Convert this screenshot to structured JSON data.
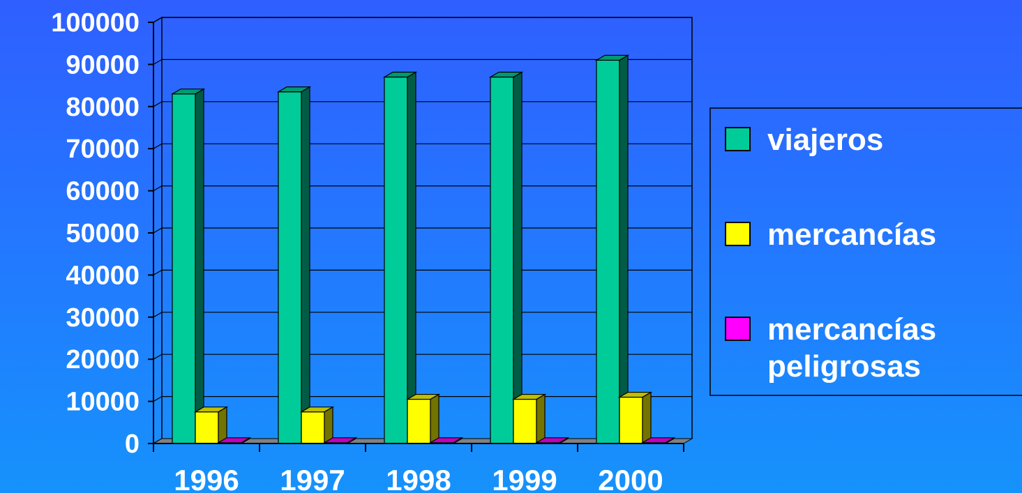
{
  "chart_data": {
    "type": "bar",
    "title": "",
    "xlabel": "",
    "ylabel": "",
    "categories": [
      "1996",
      "1997",
      "1998",
      "1999",
      "2000"
    ],
    "ylim": [
      0,
      100000
    ],
    "yticks": [
      0,
      10000,
      20000,
      30000,
      40000,
      50000,
      60000,
      70000,
      80000,
      90000,
      100000
    ],
    "grid": true,
    "legend_position": "right",
    "series": [
      {
        "name": "viajeros",
        "color": "#00cc99",
        "values": [
          83000,
          83500,
          87000,
          87000,
          91000
        ]
      },
      {
        "name": "mercancías",
        "color": "#ffff00",
        "values": [
          7500,
          7500,
          10500,
          10500,
          11000
        ]
      },
      {
        "name": "mercancías peligrosas",
        "color": "#ff00ff",
        "values": [
          200,
          200,
          200,
          200,
          200
        ]
      }
    ]
  }
}
